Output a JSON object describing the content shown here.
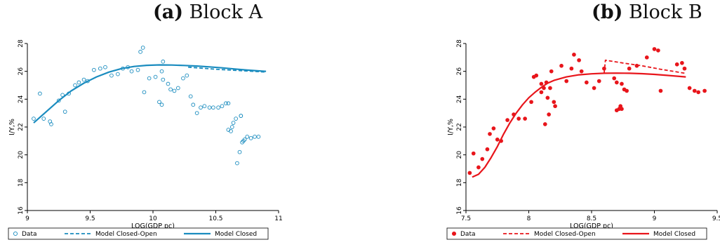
{
  "panels": [
    {
      "tag": "(a)",
      "title": "Block A"
    },
    {
      "tag": "(b)",
      "title": "Block B"
    }
  ],
  "chart_data": [
    {
      "type": "scatter",
      "title": "(a) Block A",
      "xlabel": "LOG(GDP pc)",
      "ylabel": "I/Y,%",
      "xlim": [
        9,
        11
      ],
      "ylim": [
        16,
        28
      ],
      "xticks": [
        "9",
        "9.5",
        "10",
        "10.5",
        "11"
      ],
      "yticks": [
        "16",
        "18",
        "20",
        "22",
        "24",
        "26",
        "28"
      ],
      "color": "#1a8cbf",
      "legend": [
        "Data",
        "Model Closed-Open",
        "Model Closed"
      ],
      "legend_placement": "bottom",
      "series": [
        {
          "name": "Data",
          "kind": "hollow-points",
          "points": [
            [
              9.05,
              22.6
            ],
            [
              9.1,
              24.4
            ],
            [
              9.13,
              22.6
            ],
            [
              9.18,
              22.4
            ],
            [
              9.19,
              22.2
            ],
            [
              9.25,
              23.9
            ],
            [
              9.28,
              24.3
            ],
            [
              9.3,
              23.1
            ],
            [
              9.33,
              24.4
            ],
            [
              9.38,
              25
            ],
            [
              9.41,
              25.2
            ],
            [
              9.45,
              25.4
            ],
            [
              9.48,
              25.3
            ],
            [
              9.53,
              26.1
            ],
            [
              9.58,
              26.2
            ],
            [
              9.62,
              26.3
            ],
            [
              9.67,
              25.7
            ],
            [
              9.72,
              25.8
            ],
            [
              9.76,
              26.2
            ],
            [
              9.8,
              26.3
            ],
            [
              9.83,
              26
            ],
            [
              9.88,
              26.1
            ],
            [
              9.9,
              27.4
            ],
            [
              9.92,
              27.7
            ],
            [
              9.93,
              24.5
            ],
            [
              9.97,
              25.5
            ],
            [
              10.02,
              25.6
            ],
            [
              10.05,
              23.8
            ],
            [
              10.07,
              23.6
            ],
            [
              10.07,
              26
            ],
            [
              10.08,
              26.7
            ],
            [
              10.08,
              25.4
            ],
            [
              10.12,
              25.1
            ],
            [
              10.14,
              24.7
            ],
            [
              10.17,
              24.6
            ],
            [
              10.2,
              24.8
            ],
            [
              10.24,
              25.5
            ],
            [
              10.27,
              25.7
            ],
            [
              10.3,
              24.2
            ],
            [
              10.32,
              23.6
            ],
            [
              10.35,
              23
            ],
            [
              10.38,
              23.4
            ],
            [
              10.41,
              23.5
            ],
            [
              10.45,
              23.4
            ],
            [
              10.48,
              23.4
            ],
            [
              10.52,
              23.4
            ],
            [
              10.55,
              23.5
            ],
            [
              10.58,
              23.7
            ],
            [
              10.6,
              23.7
            ],
            [
              10.6,
              21.8
            ],
            [
              10.62,
              21.7
            ],
            [
              10.63,
              22
            ],
            [
              10.64,
              22.3
            ],
            [
              10.66,
              22.6
            ],
            [
              10.67,
              19.4
            ],
            [
              10.69,
              20.2
            ],
            [
              10.7,
              22.8
            ],
            [
              10.71,
              20.9
            ],
            [
              10.72,
              21
            ],
            [
              10.73,
              21.1
            ],
            [
              10.75,
              21.3
            ],
            [
              10.78,
              21.2
            ],
            [
              10.81,
              21.3
            ],
            [
              10.84,
              21.3
            ],
            [
              10.7,
              22.8
            ]
          ]
        },
        {
          "name": "Model Closed-Open",
          "kind": "dashed-line",
          "points": [
            [
              10.28,
              26.3
            ],
            [
              10.5,
              26.15
            ],
            [
              10.7,
              26.05
            ],
            [
              10.9,
              25.95
            ]
          ]
        },
        {
          "name": "Model Closed",
          "kind": "solid-line",
          "points": [
            [
              9.05,
              22.3
            ],
            [
              9.15,
              23.1
            ],
            [
              9.25,
              23.9
            ],
            [
              9.35,
              24.6
            ],
            [
              9.45,
              25.15
            ],
            [
              9.55,
              25.6
            ],
            [
              9.65,
              25.95
            ],
            [
              9.75,
              26.2
            ],
            [
              9.85,
              26.35
            ],
            [
              9.95,
              26.43
            ],
            [
              10.05,
              26.46
            ],
            [
              10.15,
              26.45
            ],
            [
              10.25,
              26.42
            ],
            [
              10.35,
              26.38
            ],
            [
              10.45,
              26.32
            ],
            [
              10.55,
              26.25
            ],
            [
              10.65,
              26.17
            ],
            [
              10.75,
              26.09
            ],
            [
              10.9,
              26
            ]
          ]
        }
      ]
    },
    {
      "type": "scatter",
      "title": "(b) Block B",
      "xlabel": "LOG(GDP pc)",
      "ylabel": "I/Y,%",
      "xlim": [
        7.5,
        9.5
      ],
      "ylim": [
        16,
        28
      ],
      "xticks": [
        "7.5",
        "8",
        "8.5",
        "9",
        "9.5"
      ],
      "yticks": [
        "16",
        "18",
        "20",
        "22",
        "24",
        "26",
        "28"
      ],
      "color": "#e8151b",
      "legend": [
        "Data",
        "Model Closed-Open",
        "Model Closed"
      ],
      "legend_placement": "bottom",
      "series": [
        {
          "name": "Data",
          "kind": "filled-points",
          "points": [
            [
              7.53,
              18.7
            ],
            [
              7.56,
              20.1
            ],
            [
              7.6,
              19.1
            ],
            [
              7.63,
              19.7
            ],
            [
              7.67,
              20.4
            ],
            [
              7.69,
              21.5
            ],
            [
              7.72,
              21.9
            ],
            [
              7.75,
              21.1
            ],
            [
              7.78,
              21
            ],
            [
              7.83,
              22.5
            ],
            [
              7.88,
              22.9
            ],
            [
              7.92,
              22.6
            ],
            [
              7.97,
              22.6
            ],
            [
              8.02,
              23.8
            ],
            [
              8.04,
              25.6
            ],
            [
              8.06,
              25.7
            ],
            [
              8.1,
              24.5
            ],
            [
              8.1,
              25.1
            ],
            [
              8.12,
              24.8
            ],
            [
              8.13,
              22.2
            ],
            [
              8.14,
              25.2
            ],
            [
              8.15,
              24.1
            ],
            [
              8.16,
              22.9
            ],
            [
              8.17,
              24.8
            ],
            [
              8.18,
              26
            ],
            [
              8.2,
              23.8
            ],
            [
              8.21,
              23.5
            ],
            [
              8.26,
              26.4
            ],
            [
              8.3,
              25.3
            ],
            [
              8.34,
              26.2
            ],
            [
              8.36,
              27.2
            ],
            [
              8.4,
              26.8
            ],
            [
              8.42,
              26
            ],
            [
              8.46,
              25.2
            ],
            [
              8.52,
              24.8
            ],
            [
              8.56,
              25.3
            ],
            [
              8.6,
              26.2
            ],
            [
              8.68,
              25.5
            ],
            [
              8.7,
              23.2
            ],
            [
              8.72,
              23.3
            ],
            [
              8.73,
              23.5
            ],
            [
              8.74,
              23.3
            ],
            [
              8.74,
              25.1
            ],
            [
              8.76,
              24.7
            ],
            [
              8.78,
              24.6
            ],
            [
              8.8,
              26.2
            ],
            [
              8.86,
              26.4
            ],
            [
              8.94,
              27
            ],
            [
              9.0,
              27.6
            ],
            [
              9.03,
              27.5
            ],
            [
              9.05,
              24.6
            ],
            [
              9.18,
              26.5
            ],
            [
              9.22,
              26.6
            ],
            [
              9.24,
              26.2
            ],
            [
              9.28,
              24.8
            ],
            [
              9.32,
              24.6
            ],
            [
              9.35,
              24.5
            ],
            [
              9.4,
              24.6
            ],
            [
              8.7,
              25.2
            ]
          ]
        },
        {
          "name": "Model Closed-Open",
          "kind": "dashed-line",
          "points": [
            [
              8.6,
              25.85
            ],
            [
              8.61,
              26.8
            ],
            [
              8.75,
              26.6
            ],
            [
              8.9,
              26.4
            ],
            [
              9.05,
              26.15
            ],
            [
              9.25,
              25.85
            ]
          ]
        },
        {
          "name": "Model Closed",
          "kind": "solid-line",
          "points": [
            [
              7.55,
              18.4
            ],
            [
              7.6,
              18.6
            ],
            [
              7.65,
              19.1
            ],
            [
              7.7,
              19.8
            ],
            [
              7.75,
              20.6
            ],
            [
              7.8,
              21.5
            ],
            [
              7.85,
              22.3
            ],
            [
              7.9,
              23
            ],
            [
              7.95,
              23.6
            ],
            [
              8.0,
              24.1
            ],
            [
              8.05,
              24.5
            ],
            [
              8.1,
              24.85
            ],
            [
              8.15,
              25.15
            ],
            [
              8.2,
              25.35
            ],
            [
              8.3,
              25.6
            ],
            [
              8.4,
              25.75
            ],
            [
              8.5,
              25.82
            ],
            [
              8.6,
              25.86
            ],
            [
              8.7,
              25.87
            ],
            [
              8.8,
              25.86
            ],
            [
              8.9,
              25.83
            ],
            [
              9.0,
              25.78
            ],
            [
              9.1,
              25.71
            ],
            [
              9.25,
              25.6
            ]
          ]
        }
      ]
    }
  ]
}
